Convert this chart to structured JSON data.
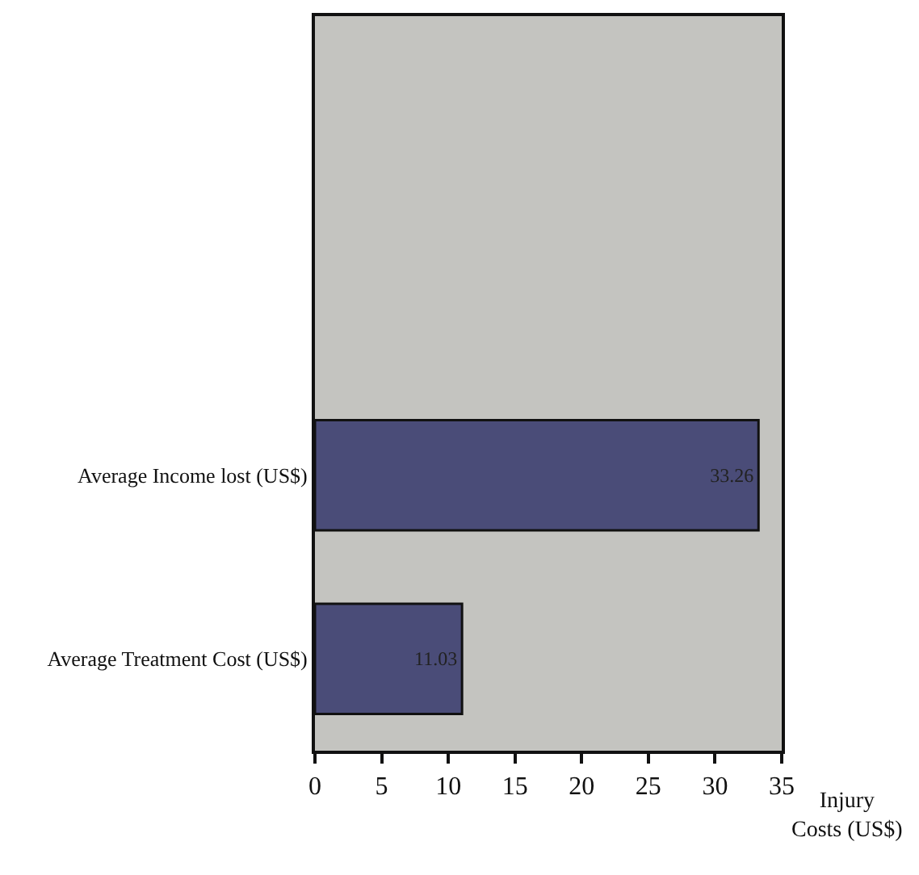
{
  "chart_data": {
    "type": "bar",
    "orientation": "horizontal",
    "xlabel": "Injury Costs (US$)",
    "categories": [
      null,
      null,
      "Average Income lost (US$)",
      "Average Treatment Cost (US$)"
    ],
    "values": [
      null,
      null,
      33.26,
      11.03
    ],
    "color": "#4a4c78",
    "xlim": [
      0,
      35
    ],
    "xticks": [
      0,
      5,
      10,
      15,
      20,
      25,
      30,
      35
    ],
    "data_labels": true,
    "grid": false
  }
}
